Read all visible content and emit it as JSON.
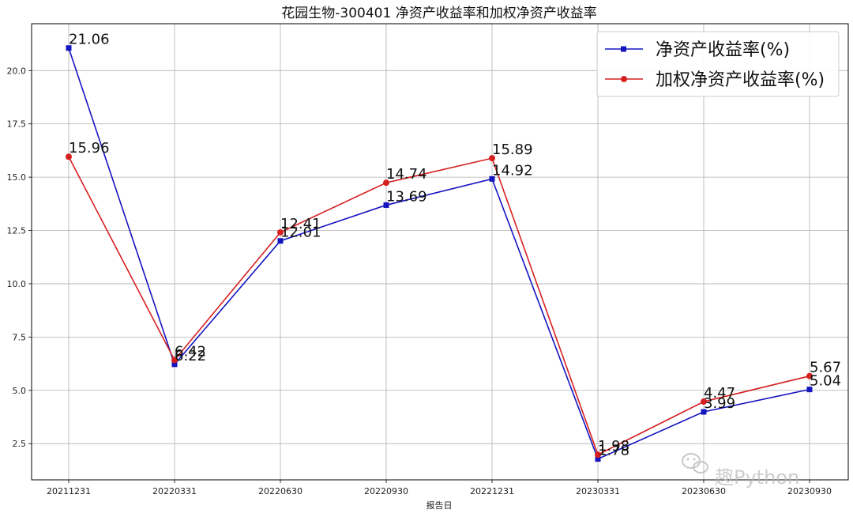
{
  "chart_data": {
    "type": "line",
    "title": "花园生物-300401 净资产收益率和加权净资产收益率",
    "xlabel": "报告日",
    "ylabel": "",
    "categories": [
      "20211231",
      "20220331",
      "20220630",
      "20220930",
      "20221231",
      "20230331",
      "20230630",
      "20230930"
    ],
    "ylim": [
      0.8,
      22.2
    ],
    "yticks": [
      2.5,
      5.0,
      7.5,
      10.0,
      12.5,
      15.0,
      17.5,
      20.0
    ],
    "grid": true,
    "legend_position": "upper right",
    "series": [
      {
        "name": "净资产收益率(%)",
        "color": "#1515c0",
        "marker": "square",
        "values": [
          21.06,
          6.22,
          12.01,
          13.69,
          14.92,
          1.78,
          3.99,
          5.04
        ],
        "labels": [
          "21.06",
          "6.22",
          "12.01",
          "13.69",
          "14.92",
          "1.78",
          "3.99",
          "5.04"
        ]
      },
      {
        "name": "加权净资产收益率(%)",
        "color": "#d62020",
        "marker": "circle",
        "values": [
          15.96,
          6.42,
          12.41,
          14.74,
          15.89,
          1.98,
          4.47,
          5.67
        ],
        "labels": [
          "15.96",
          "6.42",
          "12.41",
          "14.74",
          "15.89",
          "1.98",
          "4.47",
          "5.67"
        ]
      }
    ]
  },
  "watermark": {
    "text": "趣Python",
    "icon": "wechat-icon"
  }
}
